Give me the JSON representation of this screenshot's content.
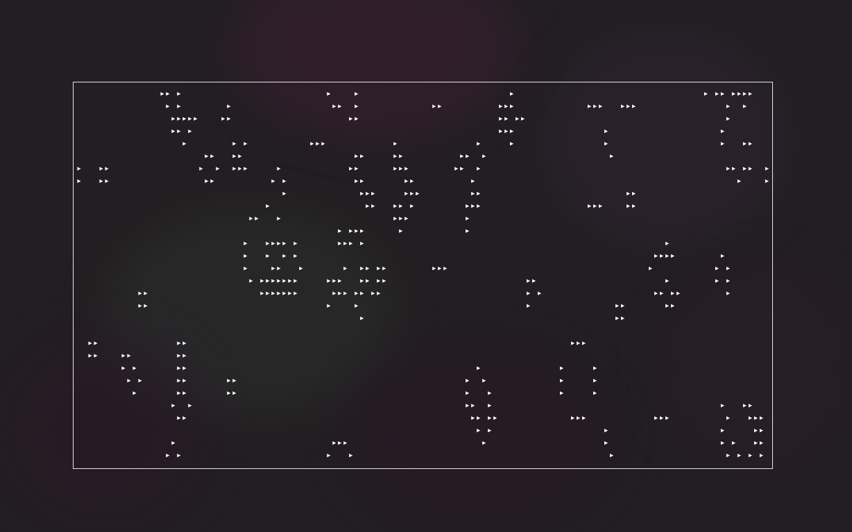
{
  "screen": {
    "background": "#221e21",
    "frame_color": "#e8e8e8",
    "glyph_color": "#ffffff",
    "glyph": "▸"
  },
  "grid": {
    "rows": [
      "               ▸▸ ▸                          ▸    ▸                           ▸                                  ▸ ▸▸ ▸▸▸▸",
      "                ▸ ▸        ▸                  ▸▸  ▸             ▸▸          ▸▸▸             ▸▸▸   ▸▸▸                ▸  ▸",
      "                 ▸▸▸▸▸    ▸▸                     ▸▸                         ▸▸ ▸▸                                    ▸",
      "                 ▸▸ ▸                                                       ▸▸▸                ▸                    ▸",
      "                   ▸        ▸ ▸           ▸▸▸            ▸              ▸     ▸                ▸                    ▸   ▸▸",
      "                       ▸▸   ▸▸                    ▸▸     ▸▸          ▸▸  ▸                      ▸",
      "▸   ▸▸                ▸  ▸  ▸▸▸     ▸            ▸▸      ▸▸▸        ▸▸  ▸                                            ▸▸ ▸▸  ▸",
      "▸   ▸▸                 ▸▸          ▸ ▸            ▸▸       ▸▸          ▸                                               ▸    ▸",
      "                                     ▸             ▸▸▸     ▸▸▸         ▸▸                          ▸▸",
      "                                  ▸                 ▸▸   ▸▸ ▸         ▸▸▸                   ▸▸▸    ▸▸",
      "                               ▸▸   ▸                    ▸▸▸          ▸",
      "                                               ▸ ▸▸▸      ▸           ▸",
      "                              ▸   ▸▸▸▸ ▸       ▸▸▸ ▸                                                      ▸",
      "                              ▸   ▸  ▸ ▸                                                                ▸▸▸▸        ▸",
      "                              ▸    ▸▸   ▸       ▸  ▸▸ ▸▸        ▸▸▸                                    ▸           ▸ ▸",
      "                               ▸ ▸▸▸▸▸▸▸     ▸▸▸   ▸▸ ▸▸                         ▸▸                       ▸        ▸ ▸",
      "           ▸▸                    ▸▸▸▸▸▸▸      ▸▸▸ ▸▸ ▸▸                          ▸ ▸                    ▸▸ ▸▸        ▸",
      "           ▸▸                                ▸    ▸                              ▸               ▸▸       ▸▸",
      "                                                   ▸                                             ▸▸",
      "",
      "  ▸▸              ▸▸                                                                     ▸▸▸",
      "  ▸▸    ▸▸        ▸▸",
      "        ▸ ▸       ▸▸                                                    ▸              ▸     ▸",
      "         ▸ ▸      ▸▸       ▸▸                                         ▸  ▸             ▸     ▸",
      "          ▸       ▸▸       ▸▸                                         ▸   ▸            ▸     ▸",
      "                 ▸  ▸                                                 ▸▸  ▸                                         ▸   ▸▸",
      "                  ▸▸                                                   ▸▸ ▸▸             ▸▸▸            ▸▸▸          ▸   ▸▸▸",
      "                                                                        ▸ ▸                    ▸                    ▸     ▸▸",
      "                 ▸                            ▸▸▸                        ▸                     ▸                    ▸ ▸   ▸▸",
      "                ▸ ▸                          ▸   ▸                                              ▸                    ▸ ▸ ▸ ▸"
    ]
  }
}
